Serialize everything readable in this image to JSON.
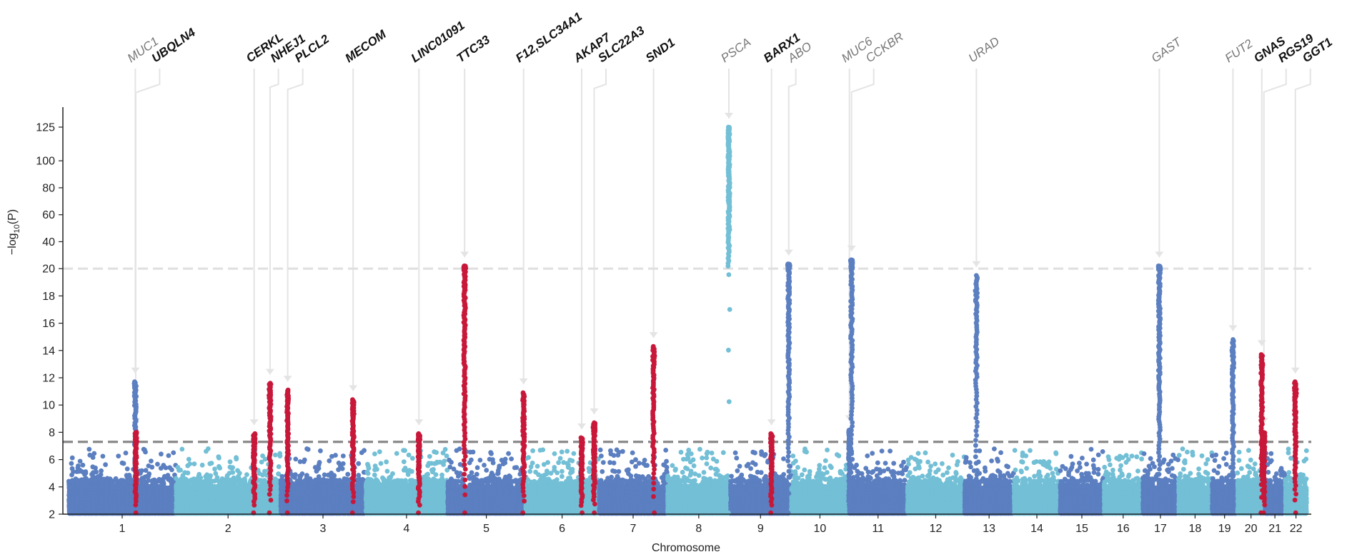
{
  "chart_data": {
    "type": "scatter",
    "subtype": "manhattan",
    "title": "",
    "xlabel": "Chromosome",
    "ylabel": "−log10(P)",
    "y_axis_break": {
      "at": 20,
      "lower_max": 20,
      "upper_max": 125
    },
    "yticks": [
      2,
      4,
      6,
      8,
      10,
      12,
      14,
      16,
      18,
      20,
      40,
      60,
      80,
      100,
      125
    ],
    "ylim": [
      2,
      130
    ],
    "thresholds": [
      {
        "value": 7.3,
        "style": "dashed",
        "color": "#888888"
      },
      {
        "value": 20,
        "style": "dashed",
        "color": "#e0e0e0"
      }
    ],
    "colors": {
      "dark_blue": "#5b7fc0",
      "light_blue": "#72bfd6",
      "highlight": "#c8183a"
    },
    "chromosomes": [
      {
        "name": "1",
        "length": 249,
        "color": "dark_blue"
      },
      {
        "name": "2",
        "length": 243,
        "color": "light_blue"
      },
      {
        "name": "3",
        "length": 198,
        "color": "dark_blue"
      },
      {
        "name": "4",
        "length": 190,
        "color": "light_blue"
      },
      {
        "name": "5",
        "length": 181,
        "color": "dark_blue"
      },
      {
        "name": "6",
        "length": 171,
        "color": "light_blue"
      },
      {
        "name": "7",
        "length": 159,
        "color": "dark_blue"
      },
      {
        "name": "8",
        "length": 146,
        "color": "light_blue"
      },
      {
        "name": "9",
        "length": 141,
        "color": "dark_blue"
      },
      {
        "name": "10",
        "length": 135,
        "color": "light_blue"
      },
      {
        "name": "11",
        "length": 135,
        "color": "dark_blue"
      },
      {
        "name": "12",
        "length": 133,
        "color": "light_blue"
      },
      {
        "name": "13",
        "length": 115,
        "color": "dark_blue"
      },
      {
        "name": "14",
        "length": 107,
        "color": "light_blue"
      },
      {
        "name": "15",
        "length": 102,
        "color": "dark_blue"
      },
      {
        "name": "16",
        "length": 90,
        "color": "light_blue"
      },
      {
        "name": "17",
        "length": 83,
        "color": "dark_blue"
      },
      {
        "name": "18",
        "length": 78,
        "color": "light_blue"
      },
      {
        "name": "19",
        "length": 59,
        "color": "dark_blue"
      },
      {
        "name": "20",
        "length": 64,
        "color": "light_blue"
      },
      {
        "name": "21",
        "length": 47,
        "color": "dark_blue"
      },
      {
        "name": "22",
        "length": 51,
        "color": "light_blue"
      }
    ],
    "peaks": [
      {
        "gene": "MUC1",
        "chr": "1",
        "pos": 155,
        "peak": 11.7,
        "label_style": "light",
        "highlight": false
      },
      {
        "gene": "UBQLN4",
        "chr": "1",
        "pos": 156,
        "peak": 8.0,
        "label_style": "bold",
        "highlight": true
      },
      {
        "gene": "CERKL",
        "chr": "2",
        "pos": 182,
        "peak": 7.9,
        "label_style": "bold",
        "highlight": true
      },
      {
        "gene": "NHEJ1",
        "chr": "2",
        "pos": 219,
        "peak": 11.6,
        "label_style": "bold",
        "highlight": true
      },
      {
        "gene": "PLCL2",
        "chr": "3",
        "pos": 17,
        "peak": 11.1,
        "label_style": "bold",
        "highlight": true
      },
      {
        "gene": "MECOM",
        "chr": "3",
        "pos": 169,
        "peak": 10.4,
        "label_style": "bold",
        "highlight": true
      },
      {
        "gene": "LINC01091",
        "chr": "4",
        "pos": 124,
        "peak": 7.9,
        "label_style": "bold",
        "highlight": true
      },
      {
        "gene": "TTC33",
        "chr": "5",
        "pos": 40,
        "peak": 22.0,
        "label_style": "bold",
        "highlight": true
      },
      {
        "gene": "F12,SLC34A1",
        "chr": "5",
        "pos": 177,
        "peak": 10.9,
        "label_style": "bold",
        "highlight": true
      },
      {
        "gene": "AKAP7",
        "chr": "6",
        "pos": 131,
        "peak": 7.6,
        "label_style": "bold",
        "highlight": true
      },
      {
        "gene": "SLC22A3",
        "chr": "6",
        "pos": 160,
        "peak": 8.7,
        "label_style": "bold",
        "highlight": true
      },
      {
        "gene": "SND1",
        "chr": "7",
        "pos": 127,
        "peak": 14.3,
        "label_style": "bold",
        "highlight": true
      },
      {
        "gene": "PSCA",
        "chr": "8",
        "pos": 143,
        "peak": 125,
        "label_style": "light",
        "highlight": false
      },
      {
        "gene": "BARX1",
        "chr": "9",
        "pos": 96,
        "peak": 7.9,
        "label_style": "bold",
        "highlight": true
      },
      {
        "gene": "ABO",
        "chr": "9",
        "pos": 136,
        "peak": 23.5,
        "label_style": "light",
        "highlight": false
      },
      {
        "gene": "MUC6",
        "chr": "11",
        "pos": 1,
        "peak": 8.2,
        "label_style": "light",
        "highlight": false
      },
      {
        "gene": "CCKBR",
        "chr": "11",
        "pos": 6,
        "peak": 26.5,
        "label_style": "light",
        "highlight": false
      },
      {
        "gene": "URAD",
        "chr": "13",
        "pos": 28,
        "peak": 19.5,
        "label_style": "light",
        "highlight": false
      },
      {
        "gene": "GAST",
        "chr": "17",
        "pos": 39,
        "peak": 22.0,
        "label_style": "light",
        "highlight": false
      },
      {
        "gene": "FUT2",
        "chr": "19",
        "pos": 49,
        "peak": 14.8,
        "label_style": "light",
        "highlight": false
      },
      {
        "gene": "GNAS",
        "chr": "20",
        "pos": 57,
        "peak": 13.7,
        "label_style": "bold",
        "highlight": true
      },
      {
        "gene": "RGS19",
        "chr": "20",
        "pos": 62,
        "peak": 8.0,
        "label_style": "bold",
        "highlight": true
      },
      {
        "gene": "GGT1",
        "chr": "22",
        "pos": 24,
        "peak": 11.7,
        "label_style": "bold",
        "highlight": true
      }
    ]
  }
}
